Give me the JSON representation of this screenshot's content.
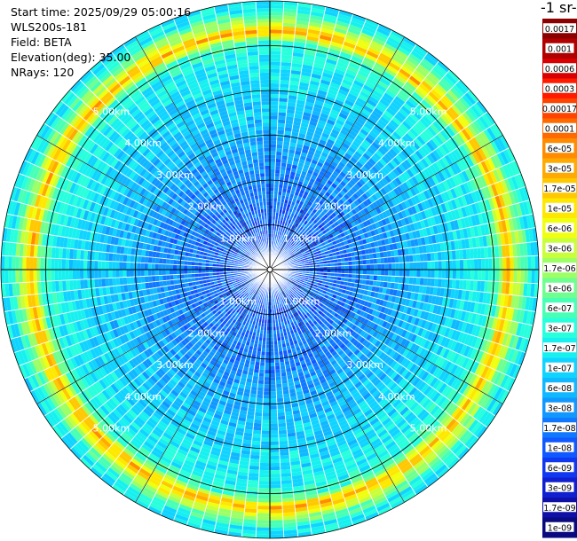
{
  "header": {
    "start_time": "Start time: 2025/09/29 05:00:16",
    "instrument": "WLS200s-181",
    "field": "Field: BETA",
    "elevation": "Elevation(deg): 35.00",
    "nrays": "NRays: 120"
  },
  "colorbar": {
    "unit_fragment": "-1 sr-",
    "ticks": [
      "0.0017",
      "0.001",
      "0.0006",
      "0.0003",
      "0.00017",
      "0.0001",
      "6e-05",
      "3e-05",
      "1.7e-05",
      "1e-05",
      "6e-06",
      "3e-06",
      "1.7e-06",
      "1e-06",
      "6e-07",
      "3e-07",
      "1.7e-07",
      "1e-07",
      "6e-08",
      "3e-08",
      "1.7e-08",
      "1e-08",
      "6e-09",
      "3e-09",
      "1.7e-09",
      "1e-09"
    ],
    "colors": [
      "#8b0000",
      "#b00000",
      "#d80000",
      "#ff1a00",
      "#ff4400",
      "#ff6a00",
      "#ff8c00",
      "#ffaa00",
      "#ffc800",
      "#ffe800",
      "#f0ff10",
      "#c8ff3a",
      "#9cff66",
      "#6fff90",
      "#48ffb6",
      "#28ffdc",
      "#18f0f0",
      "#10d4ff",
      "#10b8ff",
      "#1098ff",
      "#1078ff",
      "#1058ff",
      "#1038f0",
      "#1020d0",
      "#1010a8",
      "#0a0a80"
    ]
  },
  "chart_data": {
    "type": "heatmap",
    "projection": "polar (PPI scan)",
    "field": "BETA",
    "elevation_deg": 35.0,
    "n_rays": 120,
    "max_range_km": 6.0,
    "range_rings_km": [
      1,
      2,
      3,
      4,
      5,
      6
    ],
    "ring_labels": [
      "1.00km",
      "2.00km",
      "3.00km",
      "4.00km",
      "5.00km"
    ],
    "color_scale": "log",
    "vmin": 1e-09,
    "vmax": 0.0017,
    "radial_profile": [
      {
        "range_km": 0.0,
        "value": 1.2e-08
      },
      {
        "range_km": 1.0,
        "value": 1.2e-08
      },
      {
        "range_km": 2.0,
        "value": 2e-08
      },
      {
        "range_km": 2.8,
        "value": 4e-08
      },
      {
        "range_km": 3.3,
        "value": 6.5e-08
      },
      {
        "range_km": 3.8,
        "value": 9e-08
      },
      {
        "range_km": 4.3,
        "value": 1.3e-07
      },
      {
        "range_km": 4.8,
        "value": 2e-07
      },
      {
        "range_km": 5.1,
        "value": 5e-07
      },
      {
        "range_km": 5.3,
        "value": 3e-05
      },
      {
        "range_km": 5.5,
        "value": 3e-06
      },
      {
        "range_km": 5.8,
        "value": 2e-07
      },
      {
        "range_km": 6.0,
        "value": 1.5e-07
      }
    ]
  }
}
